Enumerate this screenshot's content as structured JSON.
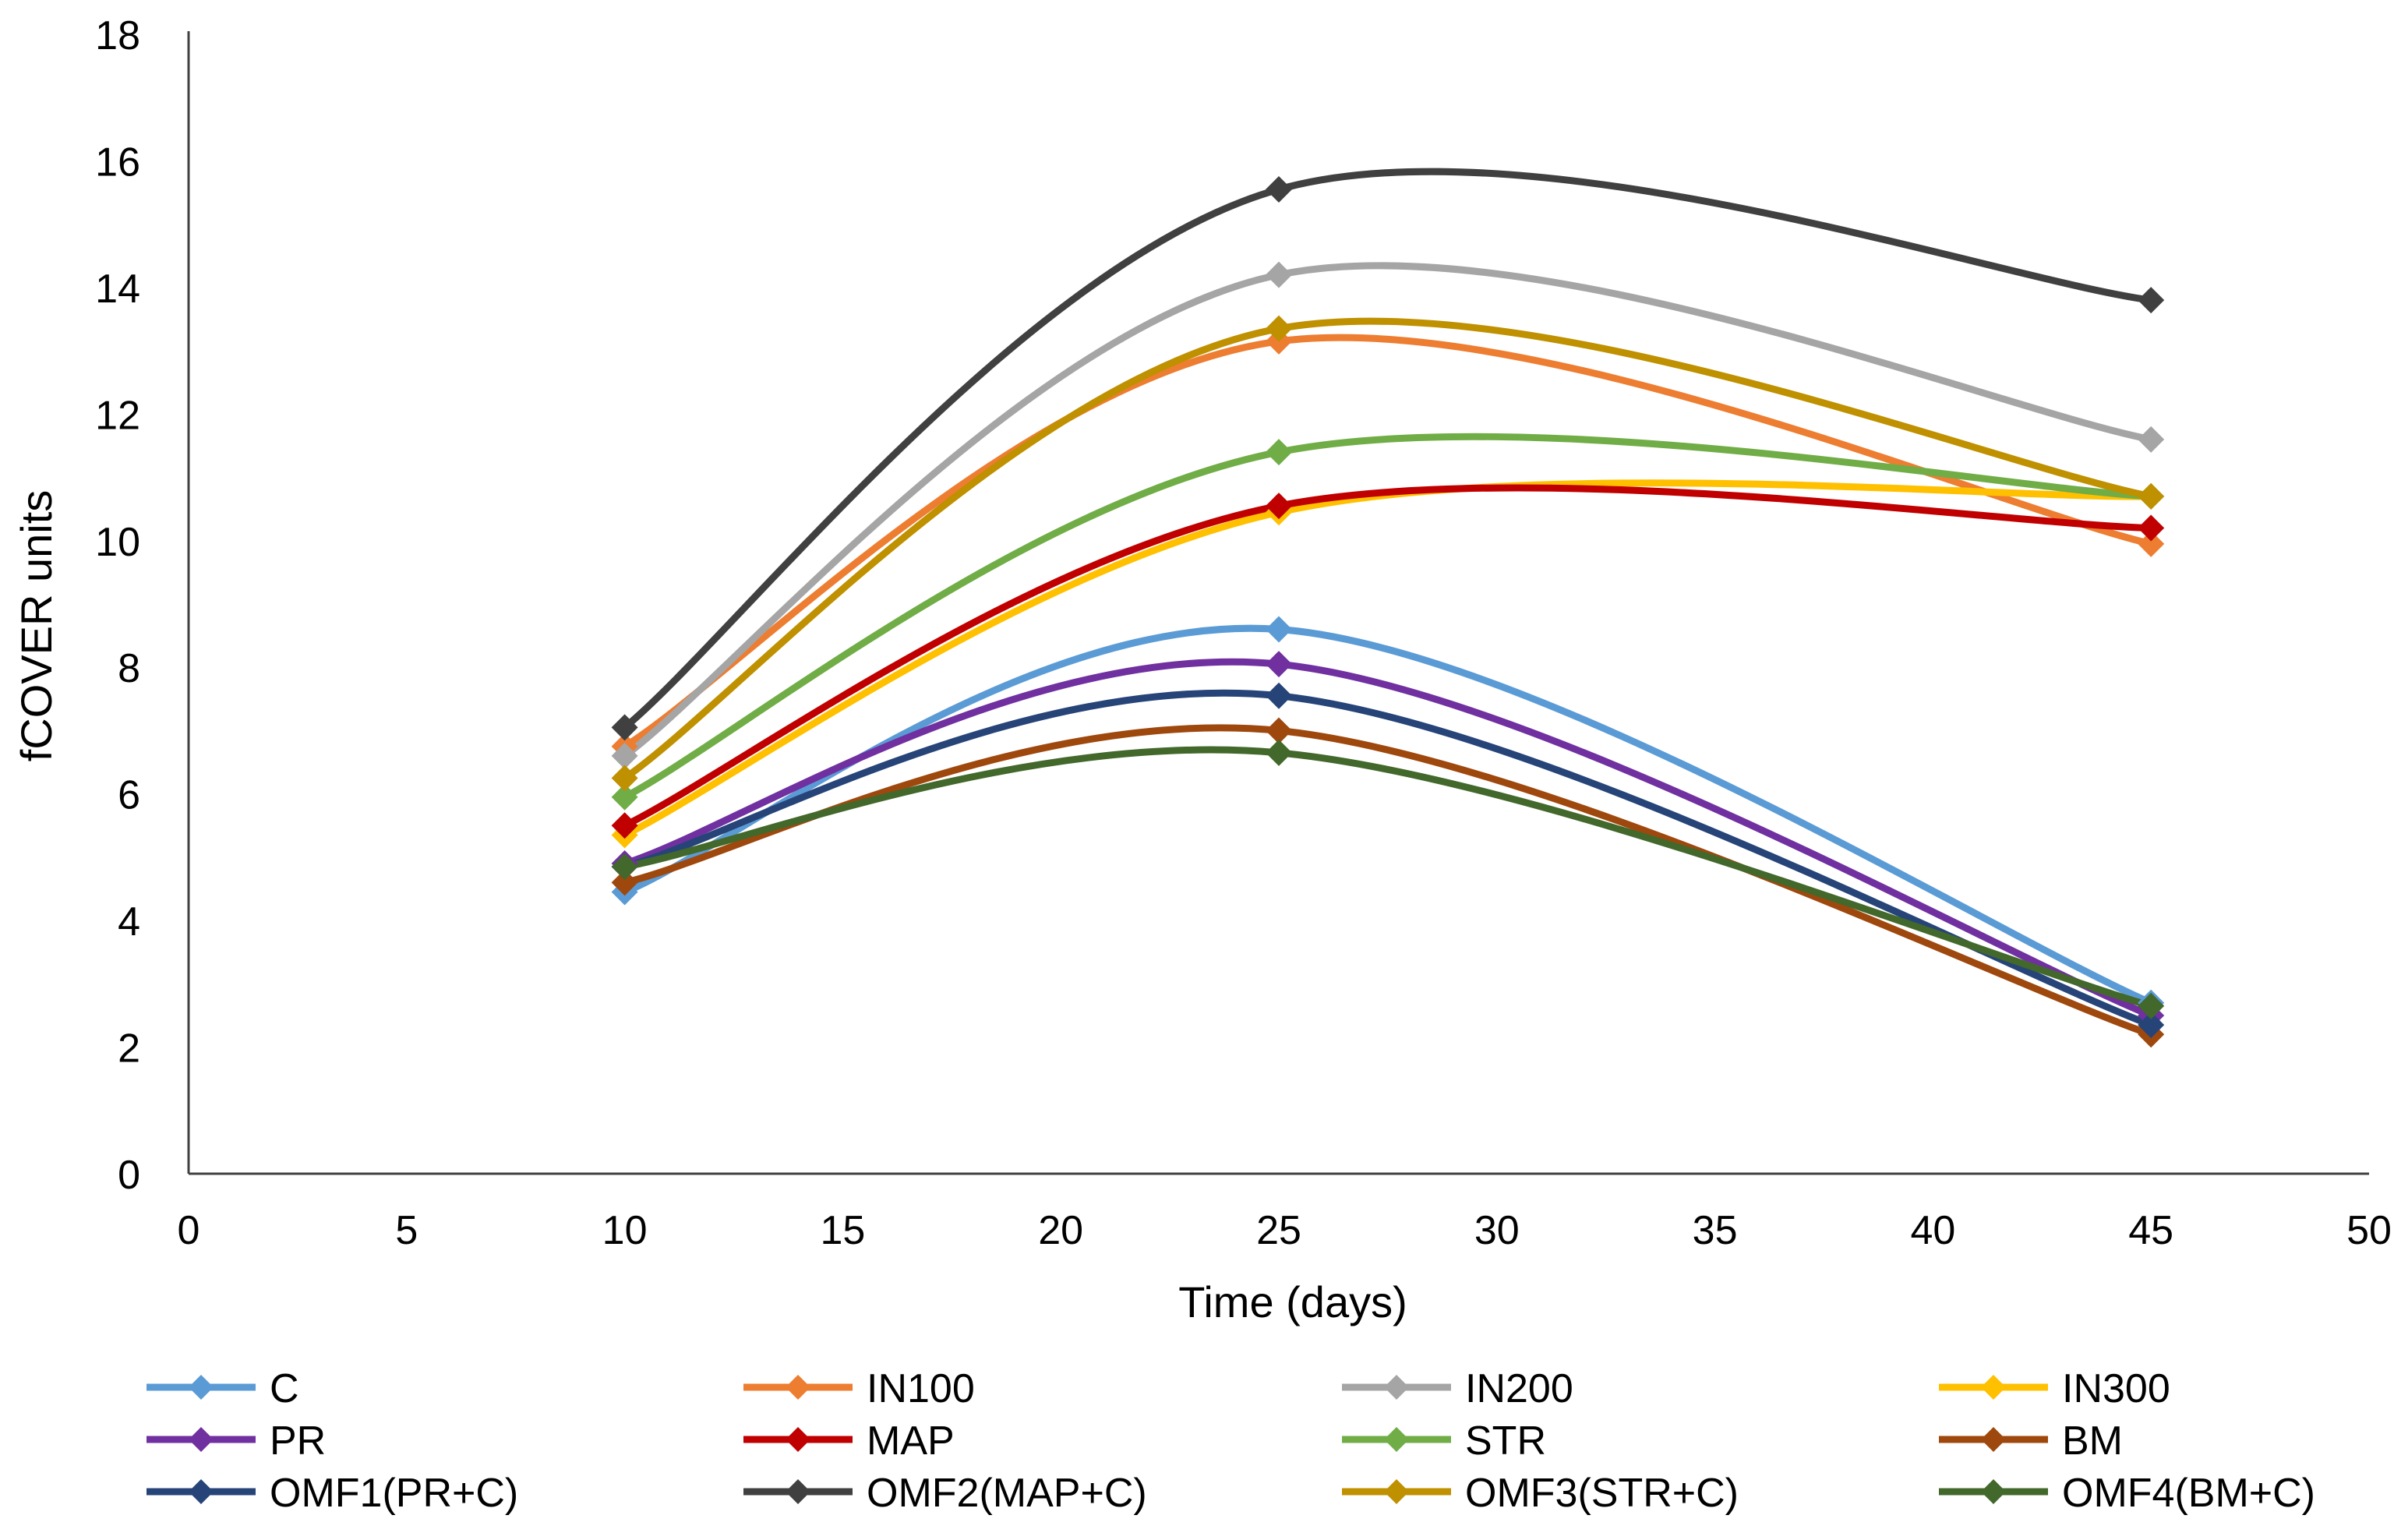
{
  "chart_data": {
    "type": "line",
    "title": "",
    "xlabel": "Time (days)",
    "ylabel": "fCOVER units",
    "xlim": [
      0,
      50
    ],
    "ylim": [
      0,
      18
    ],
    "x_ticks": [
      0,
      5,
      10,
      15,
      20,
      25,
      30,
      35,
      40,
      45,
      50
    ],
    "y_ticks": [
      0,
      2,
      4,
      6,
      8,
      10,
      12,
      14,
      16,
      18
    ],
    "x_tick_labels": [
      "0",
      "5",
      "10",
      "15",
      "20",
      "25",
      "30",
      "35",
      "40",
      "45",
      "50"
    ],
    "y_tick_labels": [
      "0",
      "2",
      "4",
      "6",
      "8",
      "10",
      "12",
      "14",
      "16",
      "18"
    ],
    "grid": false,
    "legend_position": "bottom",
    "smooth": true,
    "marker": "diamond",
    "x": [
      10,
      25,
      45
    ],
    "series": [
      {
        "name": "C",
        "color": "#5B9BD5",
        "values": [
          4.45,
          8.6,
          2.7
        ]
      },
      {
        "name": "IN100",
        "color": "#ED7D31",
        "values": [
          6.75,
          13.15,
          9.95
        ]
      },
      {
        "name": "IN200",
        "color": "#A5A5A5",
        "values": [
          6.6,
          14.2,
          11.6
        ]
      },
      {
        "name": "IN300",
        "color": "#FFC000",
        "values": [
          5.35,
          10.45,
          10.7
        ]
      },
      {
        "name": "PR",
        "color": "#7030A0",
        "values": [
          4.9,
          8.05,
          2.5
        ]
      },
      {
        "name": "MAP",
        "color": "#C00000",
        "values": [
          5.5,
          10.55,
          10.2
        ]
      },
      {
        "name": "STR",
        "color": "#70AD47",
        "values": [
          5.95,
          11.4,
          10.7
        ]
      },
      {
        "name": "BM",
        "color": "#9E480E",
        "values": [
          4.6,
          7.0,
          2.2
        ]
      },
      {
        "name": "OMF1(PR+C)",
        "color": "#264478",
        "values": [
          4.85,
          7.55,
          2.35
        ]
      },
      {
        "name": "OMF2(MAP+C)",
        "color": "#404040",
        "values": [
          7.05,
          15.55,
          13.8
        ]
      },
      {
        "name": "OMF3(STR+C)",
        "color": "#BF9000",
        "values": [
          6.25,
          13.35,
          10.7
        ]
      },
      {
        "name": "OMF4(BM+C)",
        "color": "#43682B",
        "values": [
          4.85,
          6.65,
          2.65
        ]
      }
    ]
  }
}
